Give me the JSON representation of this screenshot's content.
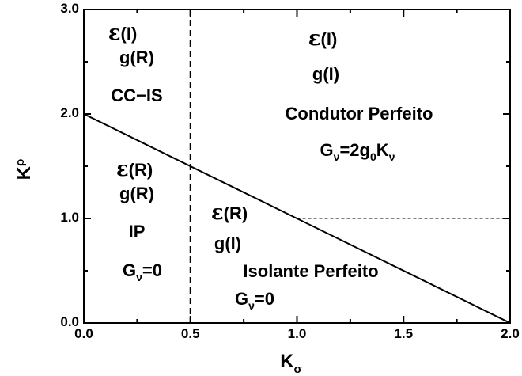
{
  "axes": {
    "x_title_main": "K",
    "x_title_sub": "σ",
    "y_title_main": "K",
    "y_title_sub": "ρ",
    "x_ticks": [
      "0.0",
      "0.5",
      "1.0",
      "1.5",
      "2.0"
    ],
    "y_ticks": [
      "0.0",
      "1.0",
      "2.0",
      "3.0"
    ],
    "x_range": [
      0,
      2
    ],
    "y_range": [
      0,
      3
    ]
  },
  "regions": {
    "cc_is": {
      "epsilon_symbol": "ε",
      "epsilon_arg": "(I)",
      "g": "g(R)",
      "name": "CC−IS"
    },
    "perfect_conductor": {
      "epsilon_symbol": "ε",
      "epsilon_arg": "(I)",
      "g": "g(I)",
      "name": "Condutor Perfeito",
      "formula_G": "G",
      "formula_G_sub": "ν",
      "formula_eq": "=2g",
      "formula_g_sub": "0",
      "formula_K": "K",
      "formula_K_sub": "ν"
    },
    "ip": {
      "epsilon_symbol": "ε",
      "epsilon_arg": "(R)",
      "g": "g(R)",
      "name": "IP",
      "formula_G": "G",
      "formula_G_sub": "ν",
      "formula_eq": "=0"
    },
    "perfect_insulator": {
      "epsilon_symbol": "ε",
      "epsilon_arg": "(R)",
      "g": "g(I)",
      "name": "Isolante Perfeito",
      "formula_G": "G",
      "formula_G_sub": "ν",
      "formula_eq": "=0"
    }
  },
  "boundaries": {
    "diagonal": {
      "from": [
        0,
        2
      ],
      "to": [
        2,
        0
      ],
      "style": "solid"
    },
    "vertical": {
      "x": 0.5,
      "style": "dashed"
    },
    "horizontal": {
      "y": 1.0,
      "x_from": 1.0,
      "x_to": 2.0,
      "style": "dashed-thin"
    }
  }
}
